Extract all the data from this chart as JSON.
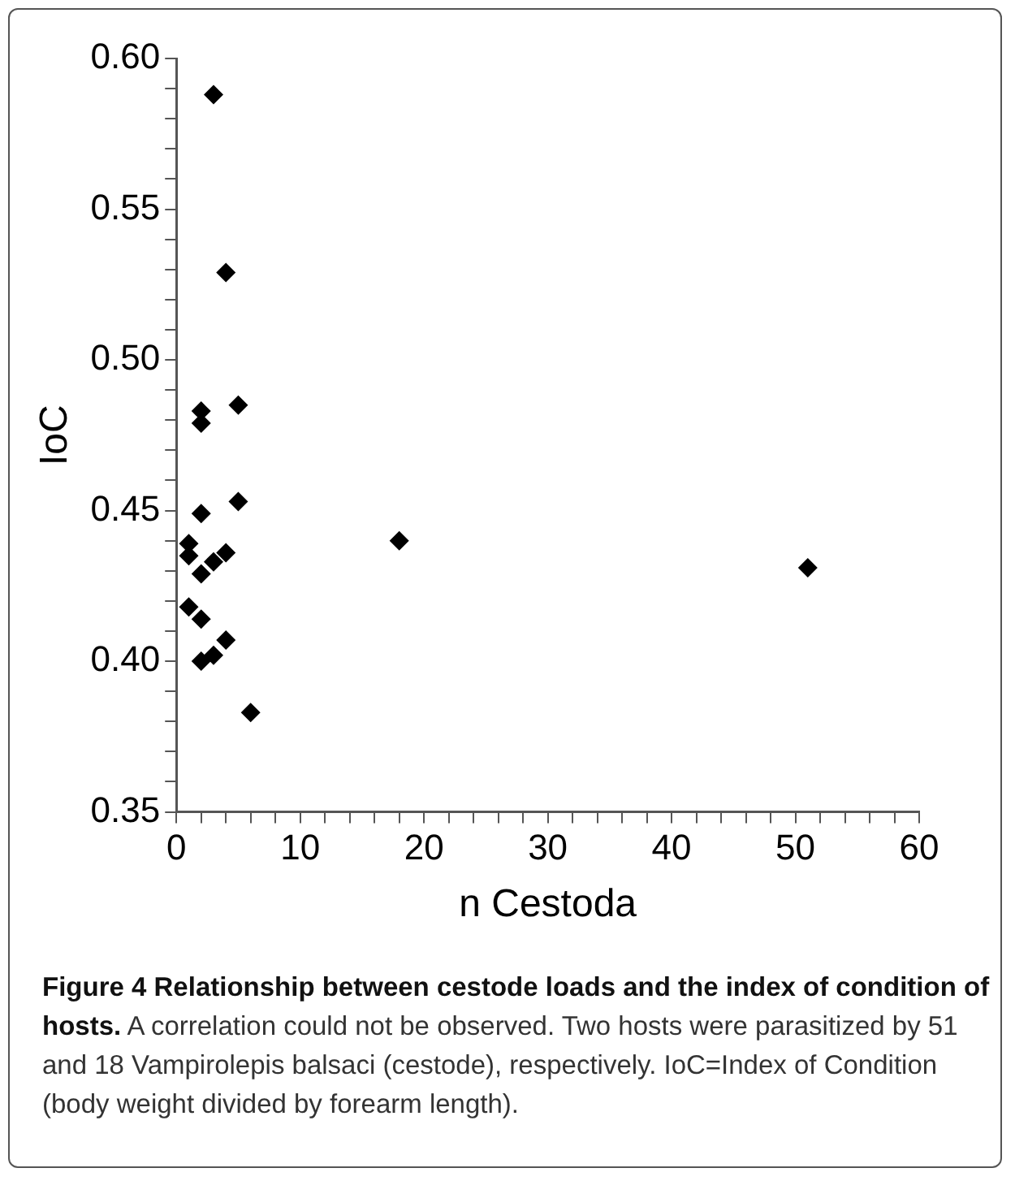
{
  "chart_data": {
    "type": "scatter",
    "title": "Figure 4 Relationship between cestode loads and the index of condition of hosts.",
    "annotations": [
      "A correlation could not be observed. Two hosts were parasitized by 51 and 18 Vampirolepis balsaci (cestode), respectively. IoC=Index of Condition (body weight divided by forearm length)."
    ],
    "xlabel": "n Cestoda",
    "ylabel": "IoC",
    "marker": "diamond",
    "grid": false,
    "legend": false,
    "series": [
      {
        "color": "#000000",
        "x": [
          3,
          4,
          2,
          2,
          5,
          2,
          5,
          1,
          1,
          2,
          3,
          4,
          1,
          2,
          2,
          3,
          4,
          6,
          18,
          51
        ],
        "values": [
          0.588,
          0.529,
          0.483,
          0.479,
          0.485,
          0.449,
          0.453,
          0.439,
          0.435,
          0.429,
          0.433,
          0.436,
          0.418,
          0.414,
          0.4,
          0.402,
          0.407,
          0.383,
          0.44,
          0.431
        ]
      }
    ],
    "xlim": [
      0,
      60
    ],
    "xticks": [
      0,
      {
        "value": 2,
        "label": null
      },
      {
        "value": 4,
        "label": null
      },
      {
        "value": 6,
        "label": null
      },
      {
        "value": 8,
        "label": null
      },
      10,
      {
        "value": 12,
        "label": null
      },
      {
        "value": 14,
        "label": null
      },
      {
        "value": 16,
        "label": null
      },
      {
        "value": 18,
        "label": null
      },
      20,
      {
        "value": 22,
        "label": null
      },
      {
        "value": 24,
        "label": null
      },
      {
        "value": 26,
        "label": null
      },
      {
        "value": 28,
        "label": null
      },
      30,
      {
        "value": 32,
        "label": null
      },
      {
        "value": 34,
        "label": null
      },
      {
        "value": 36,
        "label": null
      },
      {
        "value": 38,
        "label": null
      },
      40,
      {
        "value": 42,
        "label": null
      },
      {
        "value": 44,
        "label": null
      },
      {
        "value": 46,
        "label": null
      },
      {
        "value": 48,
        "label": null
      },
      50,
      {
        "value": 52,
        "label": null
      },
      {
        "value": 54,
        "label": null
      },
      {
        "value": 56,
        "label": null
      },
      {
        "value": 58,
        "label": null
      },
      60
    ],
    "ylim": [
      0.35,
      0.6
    ],
    "yticks": [
      {
        "value": 0.35,
        "label": "0.35"
      },
      {
        "value": 0.36,
        "label": null
      },
      {
        "value": 0.37,
        "label": null
      },
      {
        "value": 0.38,
        "label": null
      },
      {
        "value": 0.39,
        "label": null
      },
      {
        "value": 0.4,
        "label": "0.40"
      },
      {
        "value": 0.41,
        "label": null
      },
      {
        "value": 0.42,
        "label": null
      },
      {
        "value": 0.43,
        "label": null
      },
      {
        "value": 0.44,
        "label": null
      },
      {
        "value": 0.45,
        "label": "0.45"
      },
      {
        "value": 0.46,
        "label": null
      },
      {
        "value": 0.47,
        "label": null
      },
      {
        "value": 0.48,
        "label": null
      },
      {
        "value": 0.49,
        "label": null
      },
      {
        "value": 0.5,
        "label": "0.50"
      },
      {
        "value": 0.51,
        "label": null
      },
      {
        "value": 0.52,
        "label": null
      },
      {
        "value": 0.53,
        "label": null
      },
      {
        "value": 0.54,
        "label": null
      },
      {
        "value": 0.55,
        "label": "0.55"
      },
      {
        "value": 0.56,
        "label": null
      },
      {
        "value": 0.57,
        "label": null
      },
      {
        "value": 0.58,
        "label": null
      },
      {
        "value": 0.59,
        "label": null
      },
      {
        "value": 0.6,
        "label": "0.60"
      }
    ]
  }
}
